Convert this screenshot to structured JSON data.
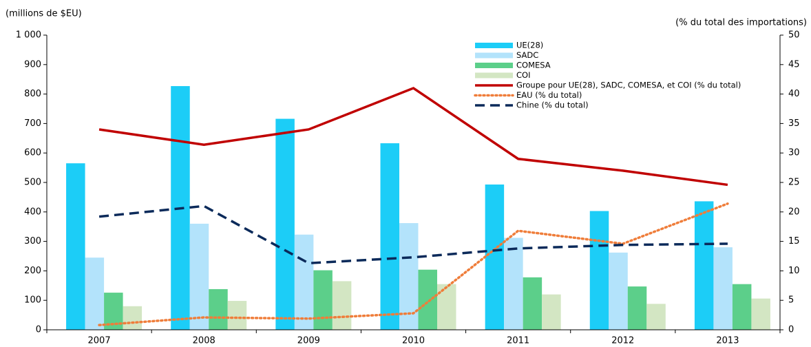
{
  "chart_data": {
    "type": "bar",
    "y_label": "(millions de $EU)",
    "y2_label": "(% du total des importations)",
    "categories": [
      "2007",
      "2008",
      "2009",
      "2010",
      "2011",
      "2012",
      "2013"
    ],
    "ylim": [
      0,
      1000
    ],
    "yticks": [
      0,
      100,
      200,
      300,
      400,
      500,
      600,
      700,
      800,
      900,
      {
        "value": 1000,
        "label": "1 000"
      }
    ],
    "y2lim": [
      0,
      50
    ],
    "y2ticks": [
      0,
      5,
      10,
      15,
      20,
      25,
      30,
      35,
      40,
      45,
      50
    ],
    "series": [
      {
        "name": "UE(28)",
        "type": "bar",
        "color": "#1ccdf7",
        "values": [
          565,
          827,
          716,
          633,
          493,
          403,
          436
        ]
      },
      {
        "name": "SADC",
        "type": "bar",
        "color": "#b3e3fb",
        "values": [
          245,
          360,
          323,
          362,
          312,
          262,
          280
        ]
      },
      {
        "name": "COMESA",
        "type": "bar",
        "color": "#5ccf8a",
        "values": [
          126,
          138,
          202,
          204,
          178,
          147,
          155
        ]
      },
      {
        "name": "COI",
        "type": "bar",
        "color": "#d3e6c3",
        "values": [
          80,
          98,
          165,
          155,
          120,
          88,
          106
        ]
      },
      {
        "name": "Groupe pour UE(28), SADC, COMESA, et COI (% du total)",
        "type": "line",
        "axis": "y2",
        "color": "#c00000",
        "dash": "solid",
        "values": [
          34.0,
          31.4,
          34.0,
          41.0,
          29.0,
          27.0,
          24.6
        ]
      },
      {
        "name": "EAU (% du total)",
        "type": "line",
        "axis": "y2",
        "color": "#ef7d3a",
        "dash": "dotted",
        "values": [
          0.8,
          2.1,
          1.9,
          2.8,
          16.8,
          14.6,
          21.4
        ]
      },
      {
        "name": "Chine (% du total)",
        "type": "line",
        "axis": "y2",
        "color": "#0b2a5a",
        "dash": "dashed",
        "values": [
          19.2,
          21.0,
          11.3,
          12.3,
          13.8,
          14.4,
          14.6
        ]
      }
    ]
  }
}
